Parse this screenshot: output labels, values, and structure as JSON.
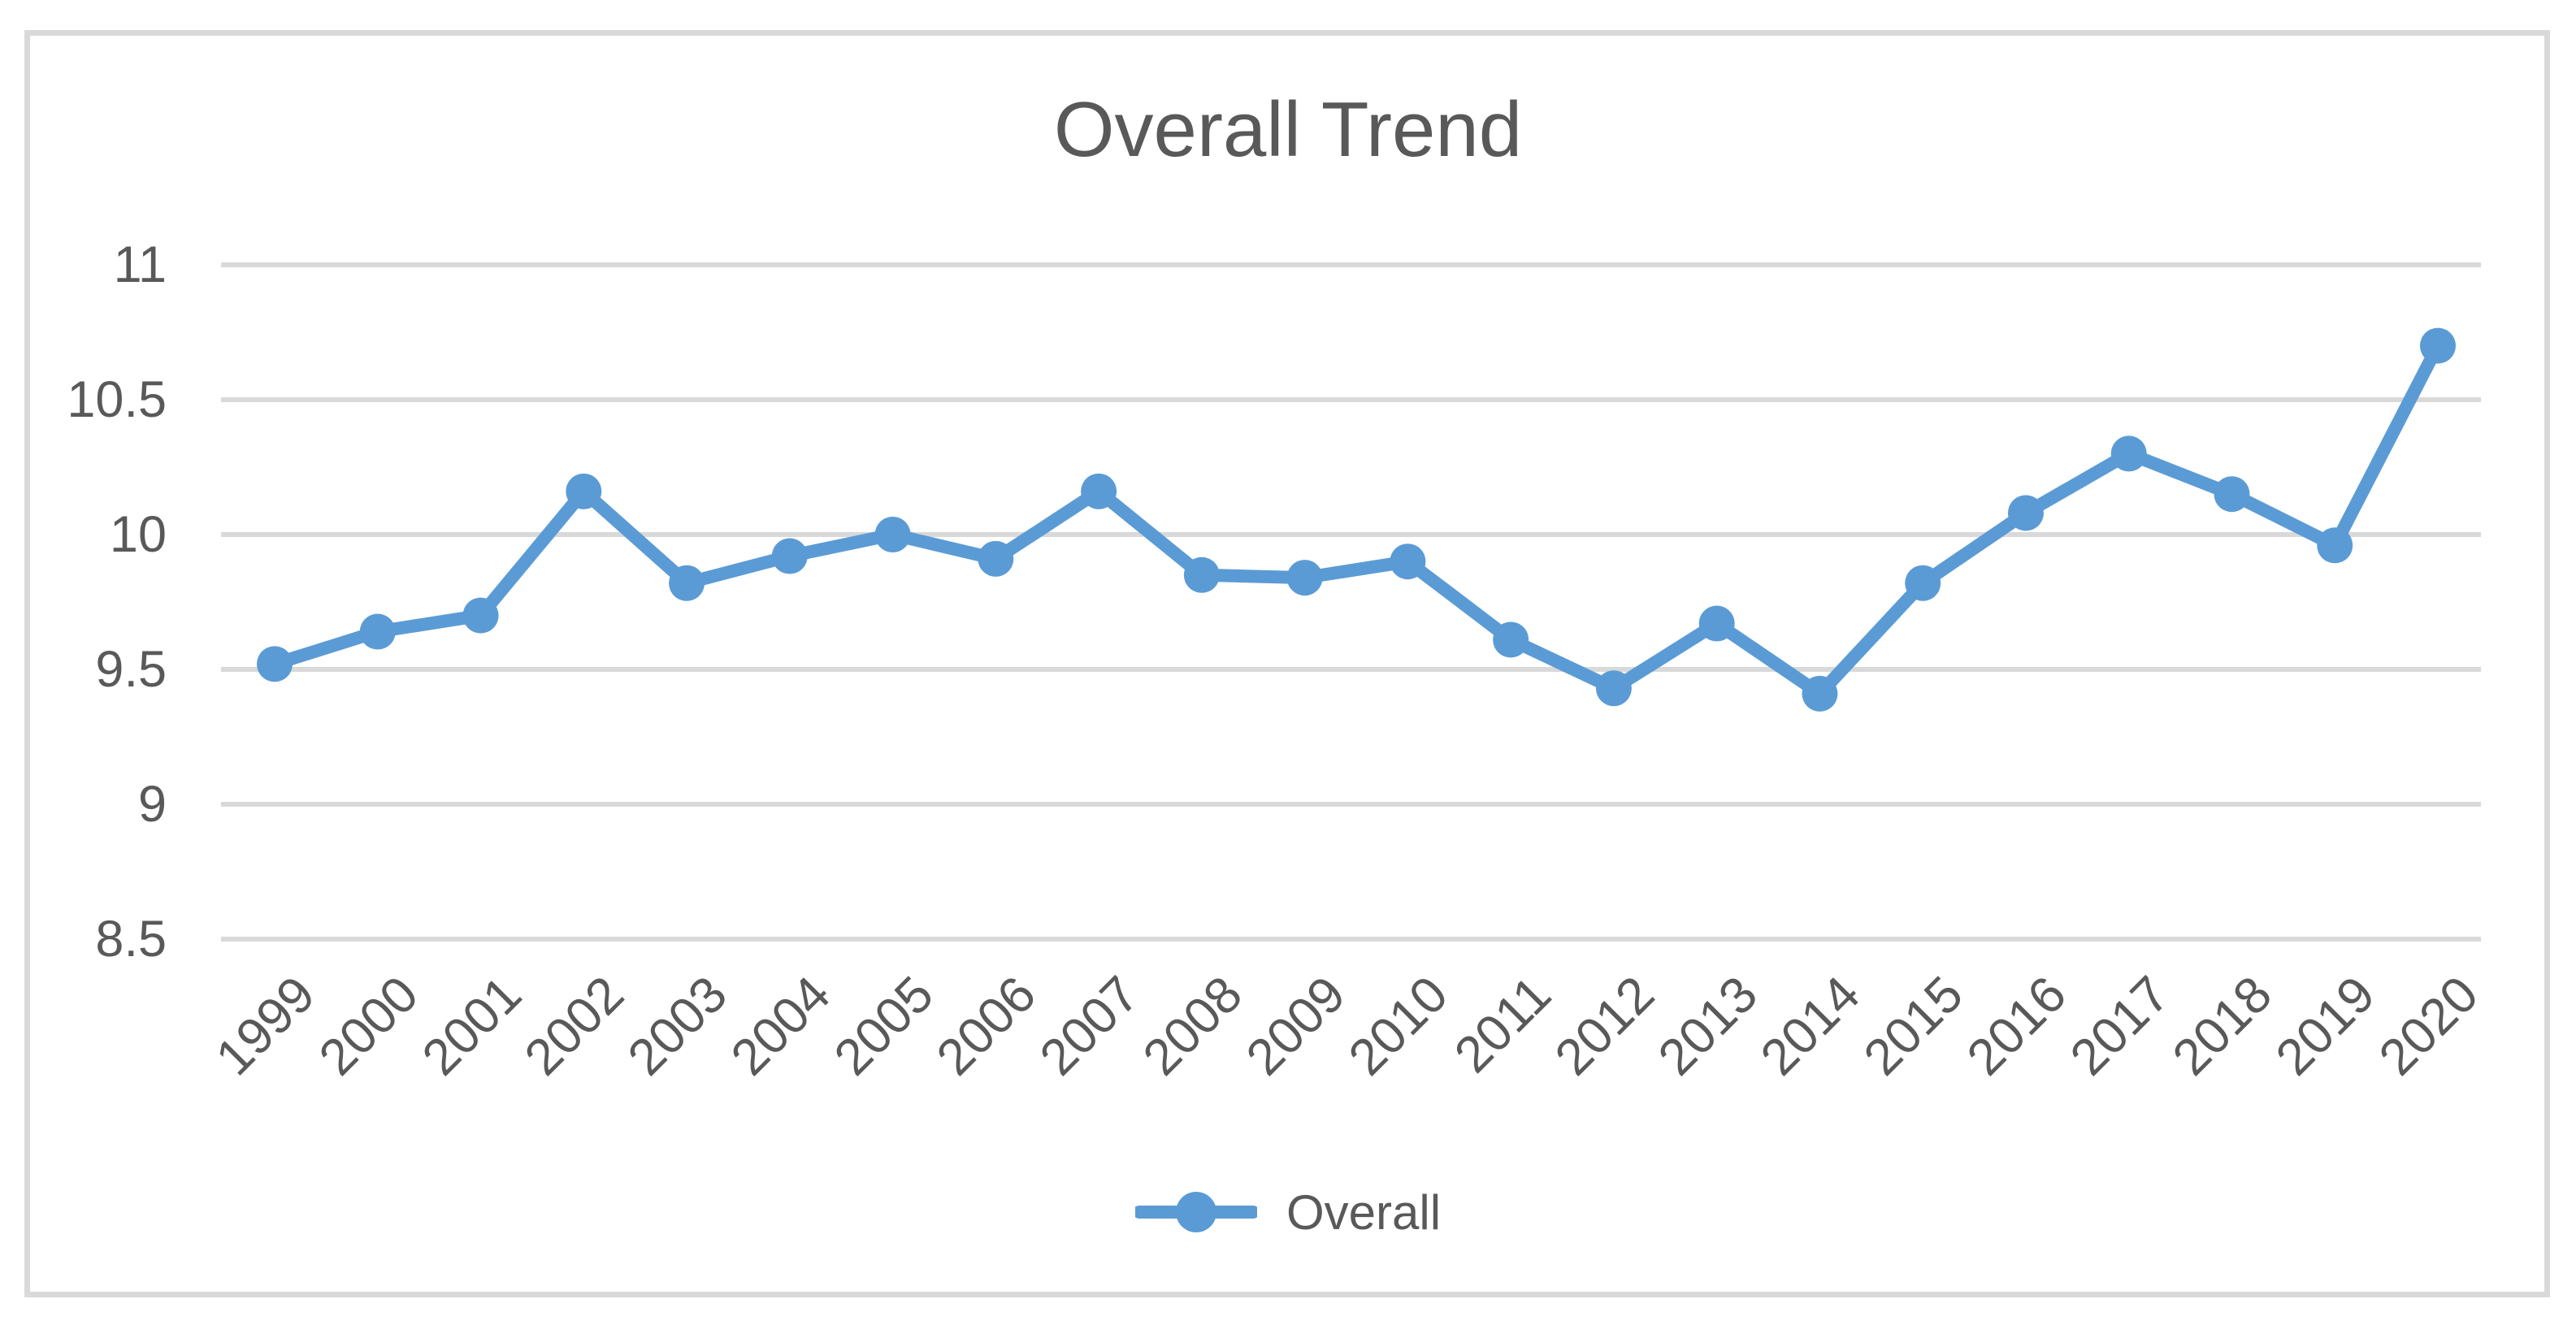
{
  "chart_data": {
    "type": "line",
    "title": "Overall Trend",
    "categories": [
      "1999",
      "2000",
      "2001",
      "2002",
      "2003",
      "2004",
      "2005",
      "2006",
      "2007",
      "2008",
      "2009",
      "2010",
      "2011",
      "2012",
      "2013",
      "2014",
      "2015",
      "2016",
      "2017",
      "2018",
      "2019",
      "2020"
    ],
    "series": [
      {
        "name": "Overall",
        "values": [
          9.52,
          9.64,
          9.7,
          10.16,
          9.82,
          9.92,
          10.0,
          9.91,
          10.16,
          9.85,
          9.84,
          9.9,
          9.61,
          9.43,
          9.67,
          9.41,
          9.82,
          10.08,
          10.3,
          10.15,
          9.96,
          10.7
        ]
      }
    ],
    "y_ticks": [
      "11",
      "10.5",
      "10",
      "9.5",
      "9",
      "8.5"
    ],
    "ylim": [
      8.5,
      11
    ],
    "tick_interval": 0.5,
    "xlabel": "",
    "ylabel": "",
    "grid": "horizontal",
    "legend_position": "bottom",
    "marker_style": "circle",
    "colors": {
      "line": "#5B9BD5",
      "gridline": "#D9D9D9",
      "text": "#595959",
      "frame_border": "#D9D9D9",
      "background": "#FFFFFF"
    }
  }
}
